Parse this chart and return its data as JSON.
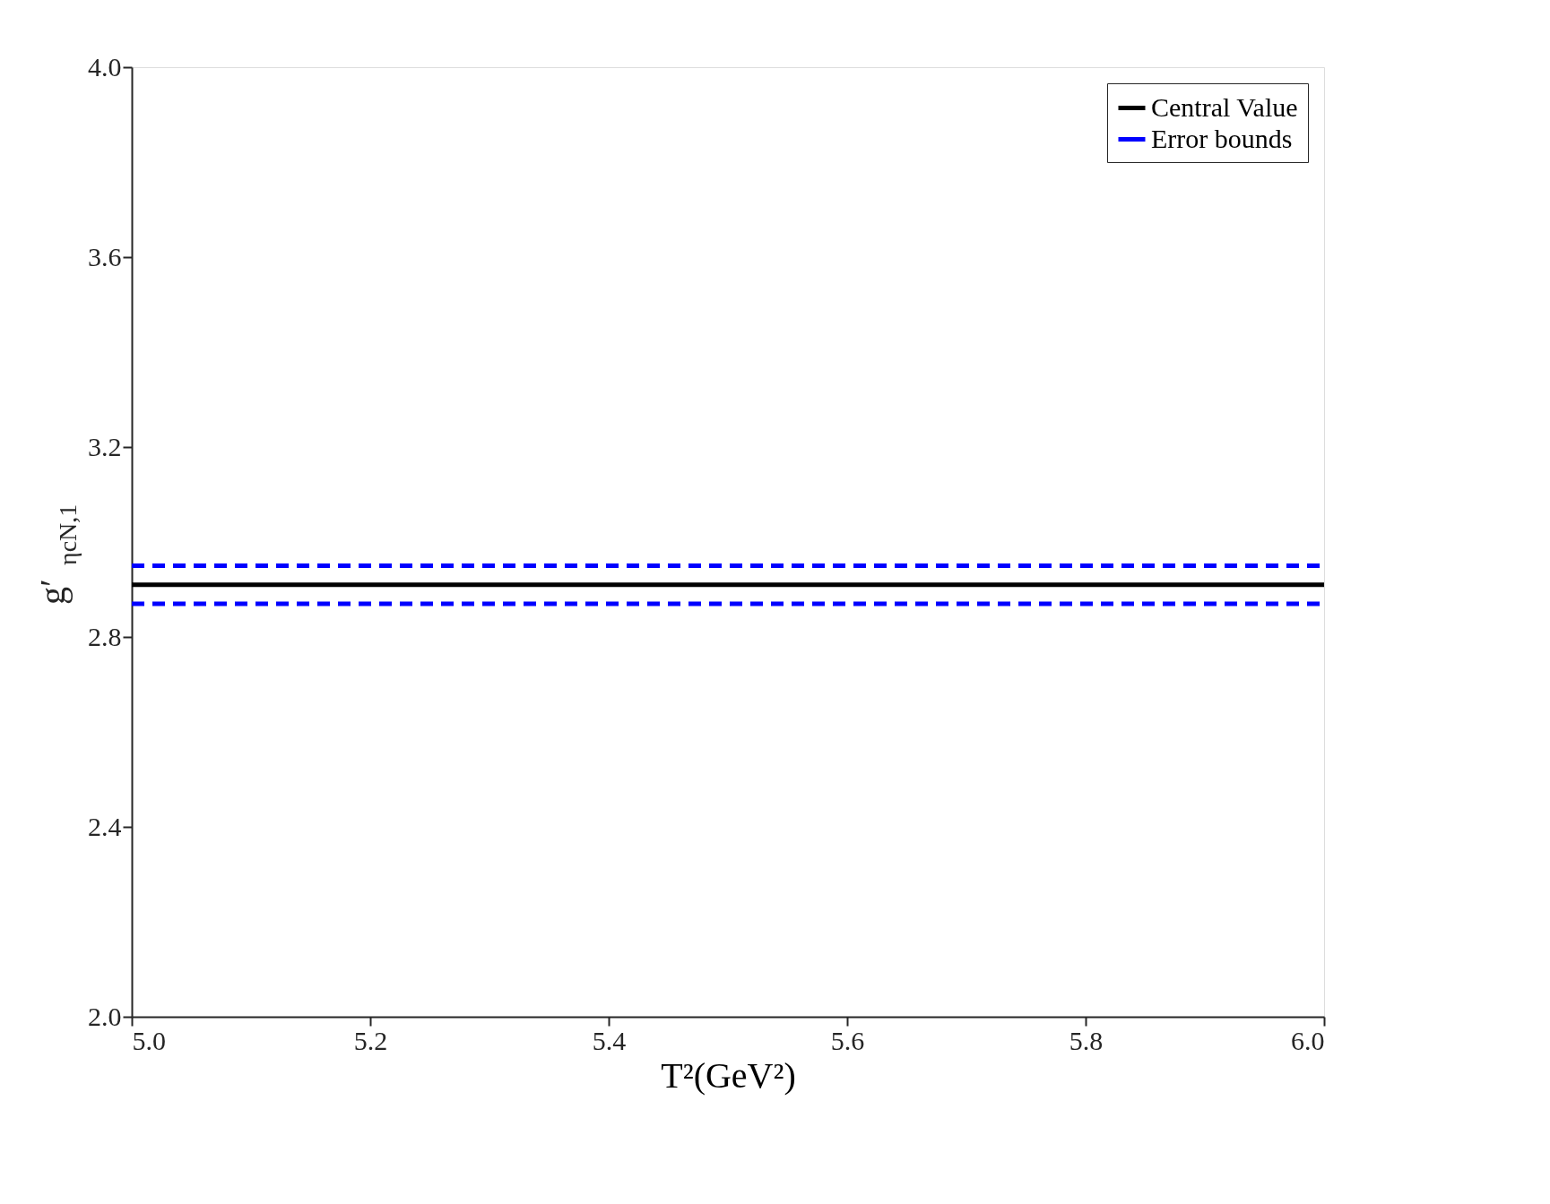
{
  "chart_data": {
    "type": "line",
    "xlabel": "T²(GeV²)",
    "ylabel": "g′$_{ηcN,1}$",
    "x": [
      5.0,
      6.0
    ],
    "series": [
      {
        "name": "Central Value",
        "color": "#000000",
        "line_style": "solid",
        "values": [
          2.91,
          2.91
        ]
      },
      {
        "name": "Error bounds",
        "color": "#0000ff",
        "line_style": "dashed",
        "values": [
          2.95,
          2.95
        ]
      },
      {
        "color": "#0000ff",
        "line_style": "dashed",
        "values": [
          2.87,
          2.87
        ]
      }
    ],
    "xlim": [
      5.0,
      6.0
    ],
    "xticks": [
      {
        "value": 5.0,
        "label": "5.0"
      },
      {
        "value": 5.2,
        "label": "5.2"
      },
      {
        "value": 5.4,
        "label": "5.4"
      },
      {
        "value": 5.6,
        "label": "5.6"
      },
      {
        "value": 5.8,
        "label": "5.8"
      },
      {
        "value": 6.0,
        "label": "6.0"
      }
    ],
    "ylim": [
      2.0,
      4.0
    ],
    "yticks": [
      {
        "value": 2.0,
        "label": "2.0"
      },
      {
        "value": 2.4,
        "label": "2.4"
      },
      {
        "value": 2.8,
        "label": "2.8"
      },
      {
        "value": 3.2,
        "label": "3.2"
      },
      {
        "value": 3.6,
        "label": "3.6"
      },
      {
        "value": 4.0,
        "label": "4.0"
      }
    ],
    "grid": false,
    "legend": "top right",
    "marker": "none"
  }
}
